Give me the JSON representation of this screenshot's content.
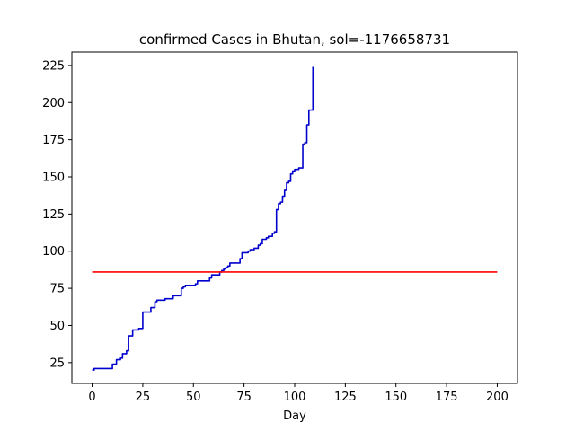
{
  "chart_data": {
    "type": "line",
    "title": "confirmed Cases in Bhutan, sol=-1176658731",
    "xlabel": "Day",
    "ylabel": "",
    "xlim": [
      -10,
      210
    ],
    "ylim": [
      11,
      234
    ],
    "xticks": [
      0,
      25,
      50,
      75,
      100,
      125,
      150,
      175,
      200
    ],
    "yticks": [
      25,
      50,
      75,
      100,
      125,
      150,
      175,
      200,
      225
    ],
    "grid": false,
    "legend": "none",
    "series": [
      {
        "color": "#0000cc",
        "step": true,
        "x": [
          0,
          1,
          2,
          3,
          4,
          5,
          6,
          7,
          8,
          9,
          10,
          11,
          12,
          13,
          14,
          15,
          16,
          17,
          18,
          19,
          20,
          21,
          22,
          23,
          24,
          25,
          26,
          27,
          28,
          29,
          30,
          31,
          32,
          33,
          34,
          35,
          36,
          37,
          38,
          39,
          40,
          41,
          42,
          43,
          44,
          45,
          46,
          47,
          48,
          49,
          50,
          51,
          52,
          53,
          54,
          55,
          56,
          57,
          58,
          59,
          60,
          61,
          62,
          63,
          64,
          65,
          66,
          67,
          68,
          69,
          70,
          71,
          72,
          73,
          74,
          75,
          76,
          77,
          78,
          79,
          80,
          81,
          82,
          83,
          84,
          85,
          86,
          87,
          88,
          89,
          90,
          91,
          92,
          93,
          94,
          95,
          96,
          97,
          98,
          99,
          100,
          101,
          102,
          103,
          104,
          105,
          106,
          107,
          108,
          109
        ],
        "y": [
          20,
          21,
          21,
          21,
          21,
          21,
          21,
          21,
          21,
          21,
          24,
          24,
          27,
          27,
          28,
          31,
          31,
          33,
          43,
          43,
          47,
          47,
          47,
          48,
          48,
          59,
          59,
          59,
          59,
          62,
          62,
          66,
          67,
          67,
          67,
          67,
          68,
          68,
          68,
          68,
          70,
          70,
          70,
          70,
          75,
          76,
          77,
          77,
          77,
          77,
          77,
          78,
          80,
          80,
          80,
          80,
          80,
          80,
          82,
          84,
          84,
          84,
          84,
          86,
          87,
          88,
          89,
          90,
          92,
          92,
          92,
          92,
          92,
          95,
          99,
          99,
          99,
          100,
          101,
          101,
          102,
          102,
          104,
          105,
          108,
          108,
          109,
          110,
          110,
          112,
          113,
          128,
          132,
          133,
          137,
          141,
          146,
          147,
          152,
          154,
          155,
          155,
          156,
          156,
          172,
          173,
          185,
          195,
          195,
          224
        ]
      },
      {
        "color": "#ff0000",
        "x": [
          0,
          200
        ],
        "y": [
          86,
          86
        ]
      }
    ]
  }
}
